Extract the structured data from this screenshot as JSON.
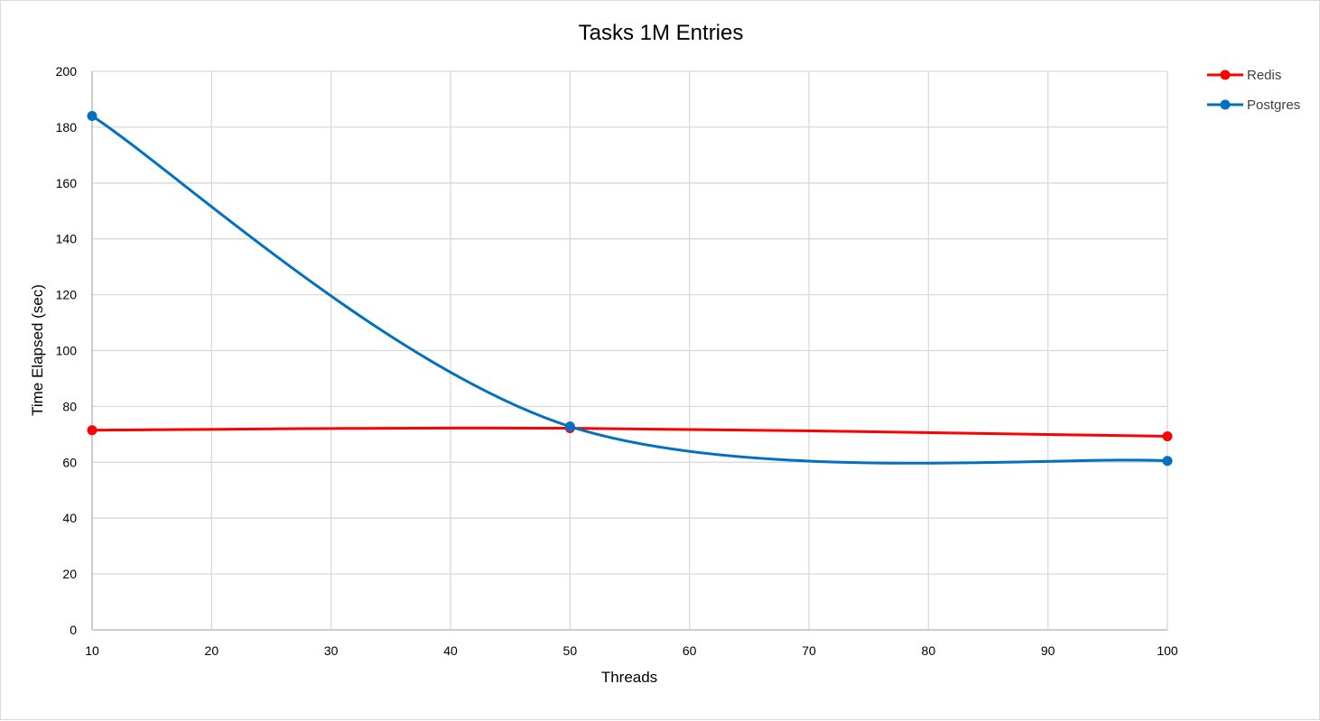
{
  "chart_data": {
    "type": "line",
    "title": "Tasks 1M Entries",
    "xlabel": "Threads",
    "ylabel": "Time Elapsed (sec)",
    "x": [
      10,
      50,
      100
    ],
    "xticks": [
      10,
      20,
      30,
      40,
      50,
      60,
      70,
      80,
      90,
      100
    ],
    "xlim": [
      10,
      100
    ],
    "ylim": [
      0,
      200
    ],
    "yticks": [
      0,
      20,
      40,
      60,
      80,
      100,
      120,
      140,
      160,
      180,
      200
    ],
    "grid": true,
    "smooth": true,
    "legend_position": "top-right",
    "series": [
      {
        "name": "Redis",
        "color": "#ff0000",
        "values": [
          71.5,
          72.2,
          69.3
        ]
      },
      {
        "name": "Postgres",
        "color": "#0070c0",
        "values": [
          184,
          72.8,
          60.5
        ]
      }
    ]
  }
}
